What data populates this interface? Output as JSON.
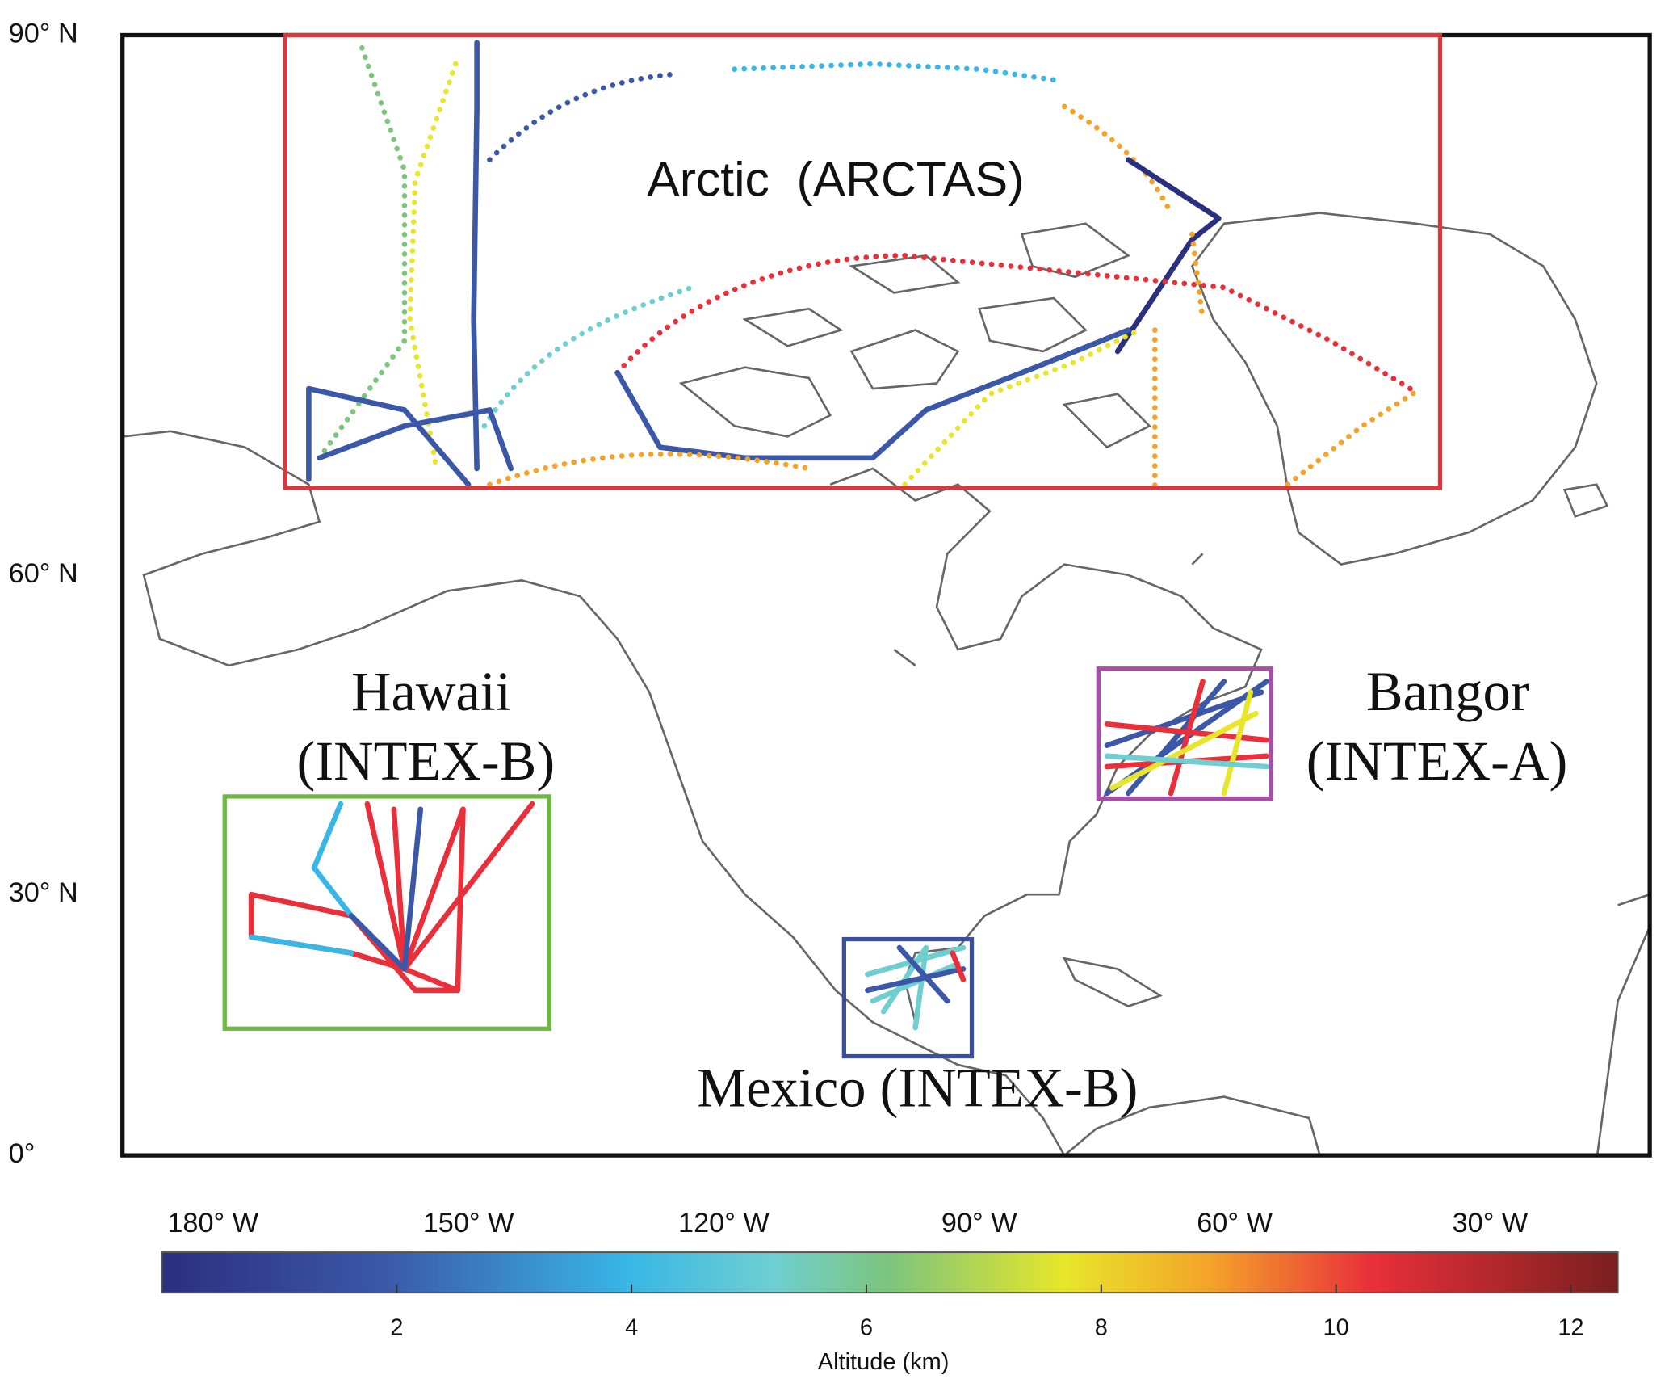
{
  "map": {
    "lat_labels": [
      {
        "value": 90,
        "label": "90° N"
      },
      {
        "value": 60,
        "label": "60° N"
      },
      {
        "value": 30,
        "label": "30° N"
      },
      {
        "value": 0,
        "label": "0°"
      }
    ],
    "lon_labels": [
      {
        "value": 180,
        "label": "180° W"
      },
      {
        "value": 150,
        "label": "150° W"
      },
      {
        "value": 120,
        "label": "120° W"
      },
      {
        "value": 90,
        "label": "90° W"
      },
      {
        "value": 60,
        "label": "60° W"
      },
      {
        "value": 30,
        "label": "30° W"
      }
    ],
    "regions": [
      {
        "label_lines": [
          "Arctic  (ARCTAS)"
        ],
        "color": "#e0353b"
      },
      {
        "label_lines": [
          "Hawaii",
          "(INTEX-B)"
        ],
        "color": "#6cb843"
      },
      {
        "label_lines": [
          "Bangor",
          "(INTEX-A)"
        ],
        "color": "#a64fa6"
      },
      {
        "label_lines": [
          "Mexico (INTEX-B)"
        ],
        "color": "#3a4fa0"
      }
    ]
  },
  "colorbar": {
    "label": "Altitude (km)",
    "lim": [
      0,
      12.4
    ],
    "ticks": [
      2,
      4,
      6,
      8,
      10,
      12
    ]
  }
}
